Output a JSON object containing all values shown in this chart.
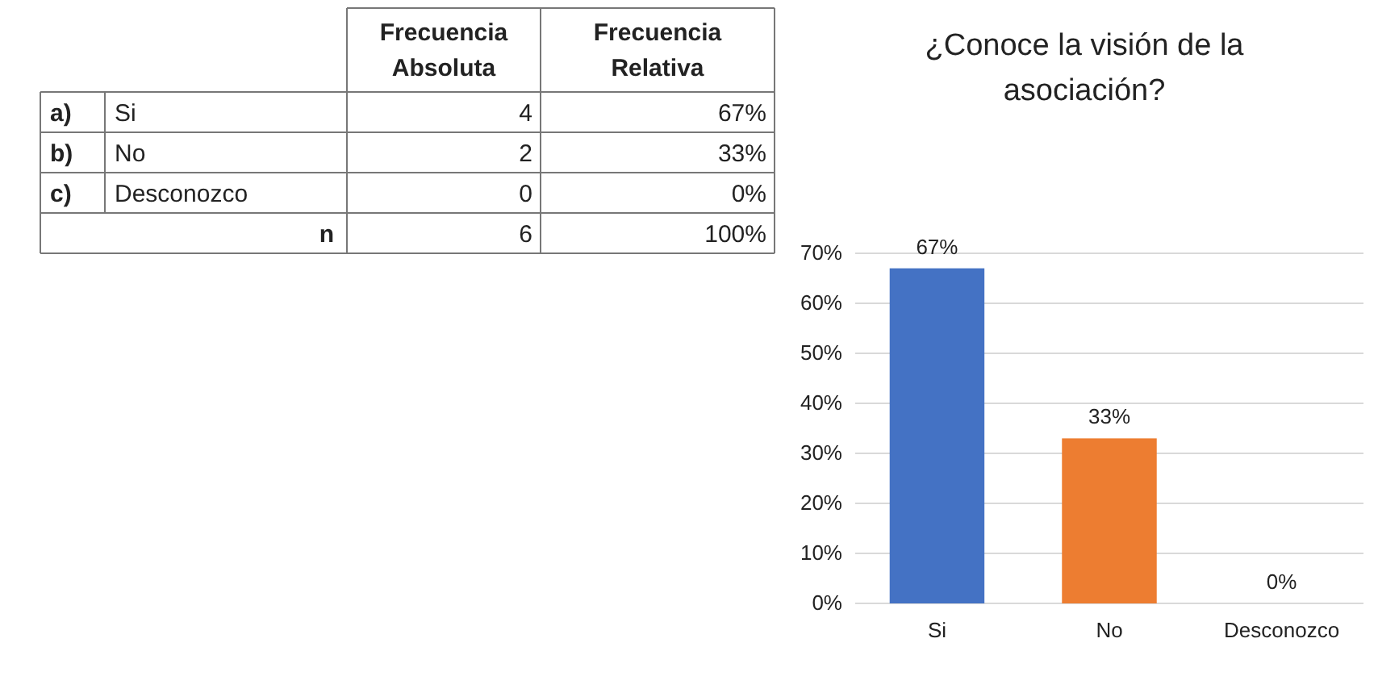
{
  "chart_data": [
    {
      "type": "other",
      "categories": [
        "Si",
        "No",
        "Desconozco",
        "n"
      ],
      "annotations": [
        "a)",
        "b)",
        "c)"
      ],
      "series": [
        {
          "name": "Frecuencia Absoluta",
          "values": [
            4,
            2,
            0,
            6
          ],
          "value_labels": [
            "4",
            "2",
            "0",
            "6"
          ]
        },
        {
          "name": "Frecuencia Relativa",
          "values": [
            67,
            33,
            0,
            100
          ],
          "value_labels": [
            "67%",
            "33%",
            "0%",
            "100%"
          ]
        }
      ]
    },
    {
      "type": "bar",
      "title": "¿Conoce la visión de la asociación?",
      "categories": [
        "Si",
        "No",
        "Desconozco"
      ],
      "values": [
        67,
        33,
        0
      ],
      "colors": [
        "#4472c4",
        "#ed7d31",
        "#a5a5a5"
      ],
      "value_labels": [
        "67%",
        "33%",
        "0%"
      ],
      "ylim": [
        0,
        70
      ],
      "yticks": [
        {
          "value": 0,
          "label": "0%"
        },
        {
          "value": 10,
          "label": "10%"
        },
        {
          "value": 20,
          "label": "20%"
        },
        {
          "value": 30,
          "label": "30%"
        },
        {
          "value": 40,
          "label": "40%"
        },
        {
          "value": 50,
          "label": "50%"
        },
        {
          "value": 60,
          "label": "60%"
        },
        {
          "value": 70,
          "label": "70%"
        }
      ],
      "grid": "y"
    }
  ]
}
